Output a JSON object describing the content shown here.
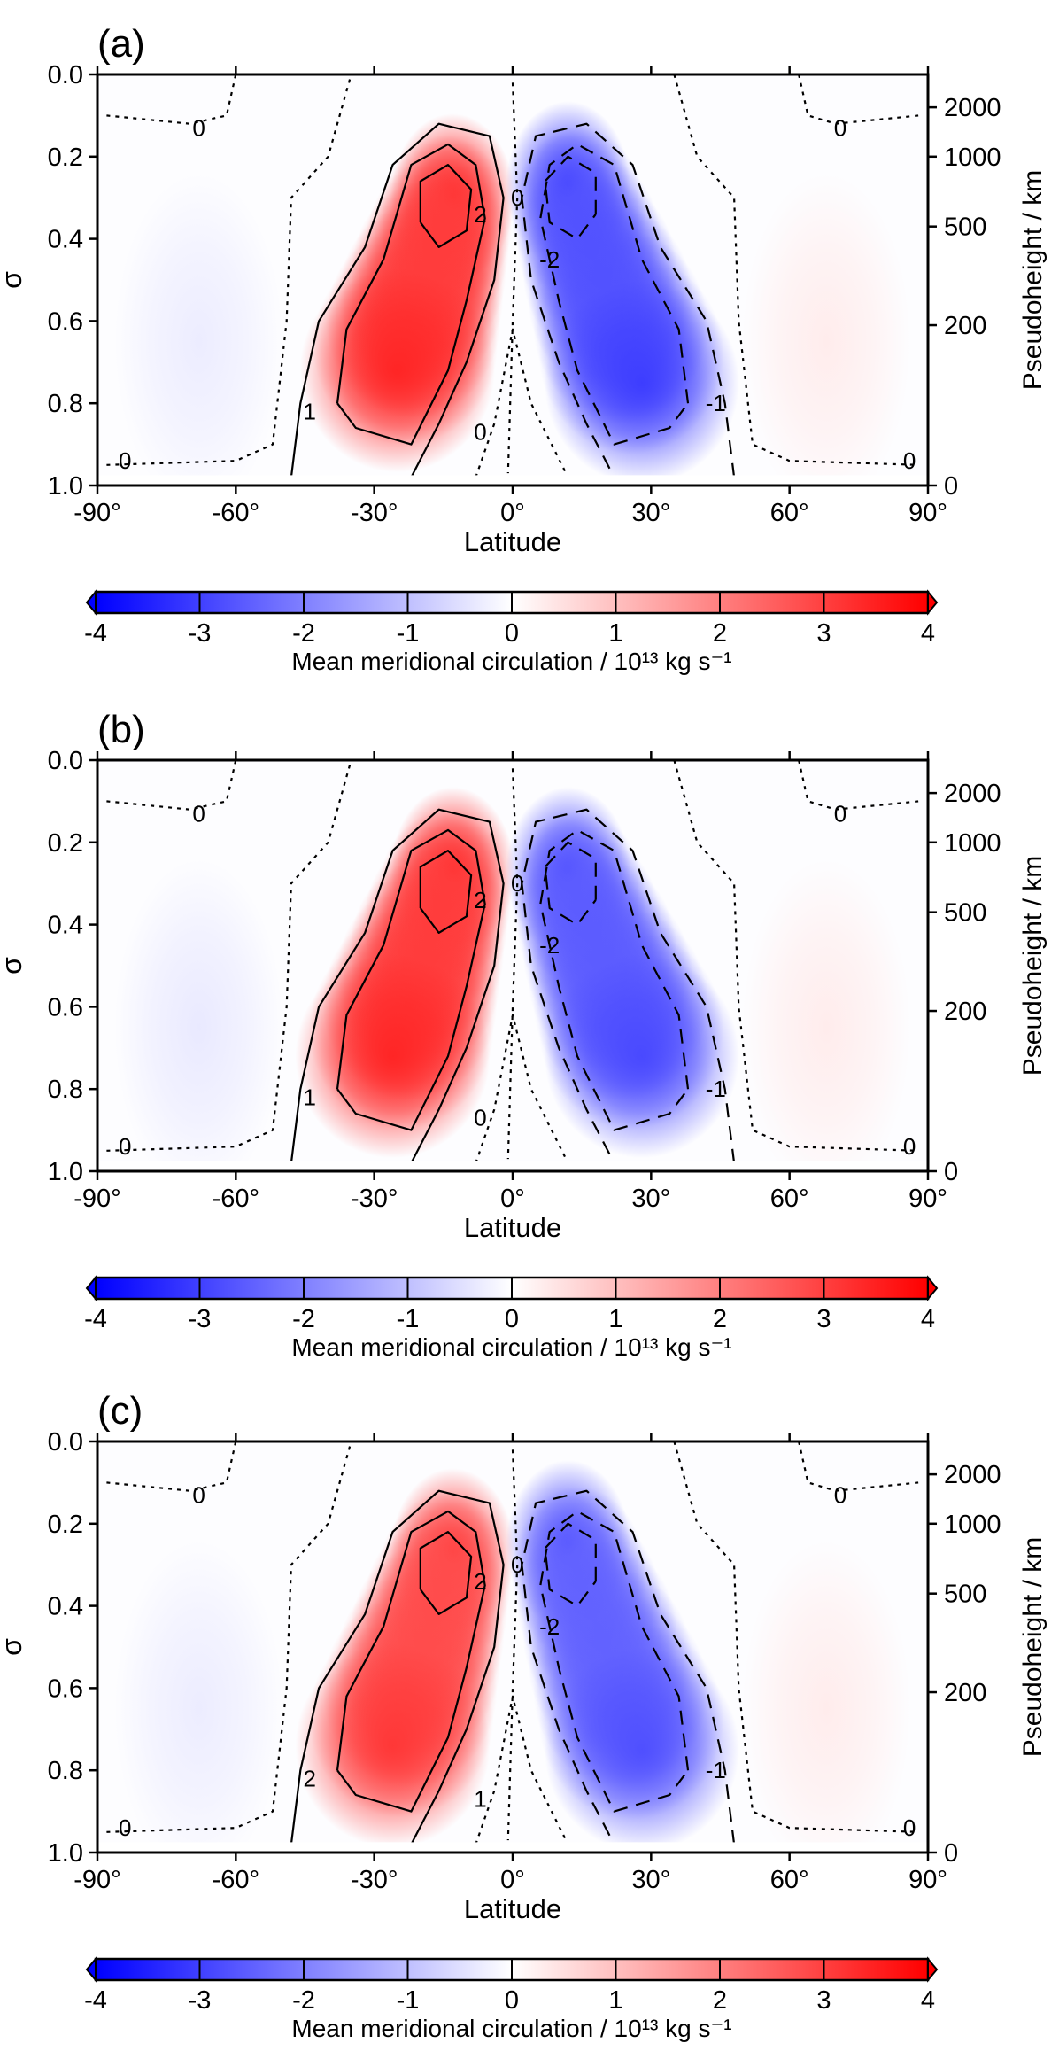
{
  "chart_data": [
    {
      "type": "heatmap",
      "panel_label": "(a)",
      "xlabel": "Latitude",
      "ylabel": "σ",
      "ylabel_right": "Pseudoheight / km",
      "xlim": [
        -90,
        90
      ],
      "ylim": [
        1.0,
        0.0
      ],
      "xticks": [
        "-90°",
        "-60°",
        "-30°",
        "0°",
        "30°",
        "60°",
        "90°"
      ],
      "yticks": [
        "0.0",
        "0.2",
        "0.4",
        "0.6",
        "0.8",
        "1.0"
      ],
      "yticks_right": [
        "2000",
        "1000",
        "500",
        "200",
        "0"
      ],
      "colorbar": {
        "label": "Mean meridional circulation / 10¹³ kg s⁻¹",
        "ticks": [
          "-4",
          "-3",
          "-2",
          "-1",
          "0",
          "1",
          "2",
          "3",
          "4"
        ],
        "range": [
          -4,
          4
        ]
      },
      "contour_labels": [
        "0",
        "0",
        "0",
        "0",
        "0",
        "0",
        "1",
        "2",
        "-1",
        "-2"
      ],
      "cells": [
        {
          "name": "northern-hemisphere-positive-cell",
          "sign": 1,
          "peak": 3.6,
          "upper_core": {
            "lat": -13,
            "sigma": 0.3
          },
          "lower_core": {
            "lat": -25,
            "sigma": 0.72
          }
        },
        {
          "name": "southern-hemisphere-negative-cell",
          "sign": -1,
          "peak": -3.2,
          "upper_core": {
            "lat": 12,
            "sigma": 0.27
          },
          "lower_core": {
            "lat": 28,
            "sigma": 0.75
          }
        },
        {
          "name": "weak-negative-high-latitude-cell",
          "lat": -68,
          "sigma": 0.65,
          "peak": -0.3
        },
        {
          "name": "weak-positive-high-latitude-cell",
          "lat": 68,
          "sigma": 0.65,
          "peak": 0.3
        }
      ]
    },
    {
      "type": "heatmap",
      "panel_label": "(b)",
      "xlabel": "Latitude",
      "ylabel": "σ",
      "ylabel_right": "Pseudoheight / km",
      "xlim": [
        -90,
        90
      ],
      "ylim": [
        1.0,
        0.0
      ],
      "xticks": [
        "-90°",
        "-60°",
        "-30°",
        "0°",
        "30°",
        "60°",
        "90°"
      ],
      "yticks": [
        "0.0",
        "0.2",
        "0.4",
        "0.6",
        "0.8",
        "1.0"
      ],
      "yticks_right": [
        "2000",
        "1000",
        "500",
        "200",
        "0"
      ],
      "colorbar": {
        "label": "Mean meridional circulation / 10¹³ kg s⁻¹",
        "ticks": [
          "-4",
          "-3",
          "-2",
          "-1",
          "0",
          "1",
          "2",
          "3",
          "4"
        ],
        "range": [
          -4,
          4
        ]
      },
      "contour_labels": [
        "0",
        "0",
        "0",
        "0",
        "0",
        "0",
        "1",
        "2",
        "-1",
        "-2"
      ],
      "cells": [
        {
          "name": "northern-hemisphere-positive-cell",
          "sign": 1,
          "peak": 3.6,
          "upper_core": {
            "lat": -13,
            "sigma": 0.27
          },
          "lower_core": {
            "lat": -26,
            "sigma": 0.72
          }
        },
        {
          "name": "southern-hemisphere-negative-cell",
          "sign": -1,
          "peak": -3.0,
          "upper_core": {
            "lat": 12,
            "sigma": 0.27
          },
          "lower_core": {
            "lat": 28,
            "sigma": 0.72
          }
        },
        {
          "name": "weak-negative-high-latitude-cell",
          "lat": -68,
          "sigma": 0.65,
          "peak": -0.35
        },
        {
          "name": "weak-positive-high-latitude-cell",
          "lat": 68,
          "sigma": 0.65,
          "peak": 0.3
        }
      ]
    },
    {
      "type": "heatmap",
      "panel_label": "(c)",
      "xlabel": "Latitude",
      "ylabel": "σ",
      "ylabel_right": "Pseudoheight / km",
      "xlim": [
        -90,
        90
      ],
      "ylim": [
        1.0,
        0.0
      ],
      "xticks": [
        "-90°",
        "-60°",
        "-30°",
        "0°",
        "30°",
        "60°",
        "90°"
      ],
      "yticks": [
        "0.0",
        "0.2",
        "0.4",
        "0.6",
        "0.8",
        "1.0"
      ],
      "yticks_right": [
        "2000",
        "1000",
        "500",
        "200",
        "0"
      ],
      "colorbar": {
        "label": "Mean meridional circulation / 10¹³ kg s⁻¹",
        "ticks": [
          "-4",
          "-3",
          "-2",
          "-1",
          "0",
          "1",
          "2",
          "3",
          "4"
        ],
        "range": [
          -4,
          4
        ]
      },
      "contour_labels": [
        "0",
        "0",
        "0",
        "0",
        "0",
        "1",
        "2",
        "2",
        "-1",
        "-2"
      ],
      "cells": [
        {
          "name": "northern-hemisphere-positive-cell",
          "sign": 1,
          "peak": 3.3,
          "upper_core": {
            "lat": -13,
            "sigma": 0.27
          },
          "lower_core": {
            "lat": -26,
            "sigma": 0.74
          }
        },
        {
          "name": "southern-hemisphere-negative-cell",
          "sign": -1,
          "peak": -2.9,
          "upper_core": {
            "lat": 12,
            "sigma": 0.25
          },
          "lower_core": {
            "lat": 28,
            "sigma": 0.75
          }
        },
        {
          "name": "weak-negative-high-latitude-cell",
          "lat": -68,
          "sigma": 0.65,
          "peak": -0.3
        },
        {
          "name": "weak-positive-high-latitude-cell",
          "lat": 68,
          "sigma": 0.65,
          "peak": 0.3
        }
      ]
    }
  ]
}
